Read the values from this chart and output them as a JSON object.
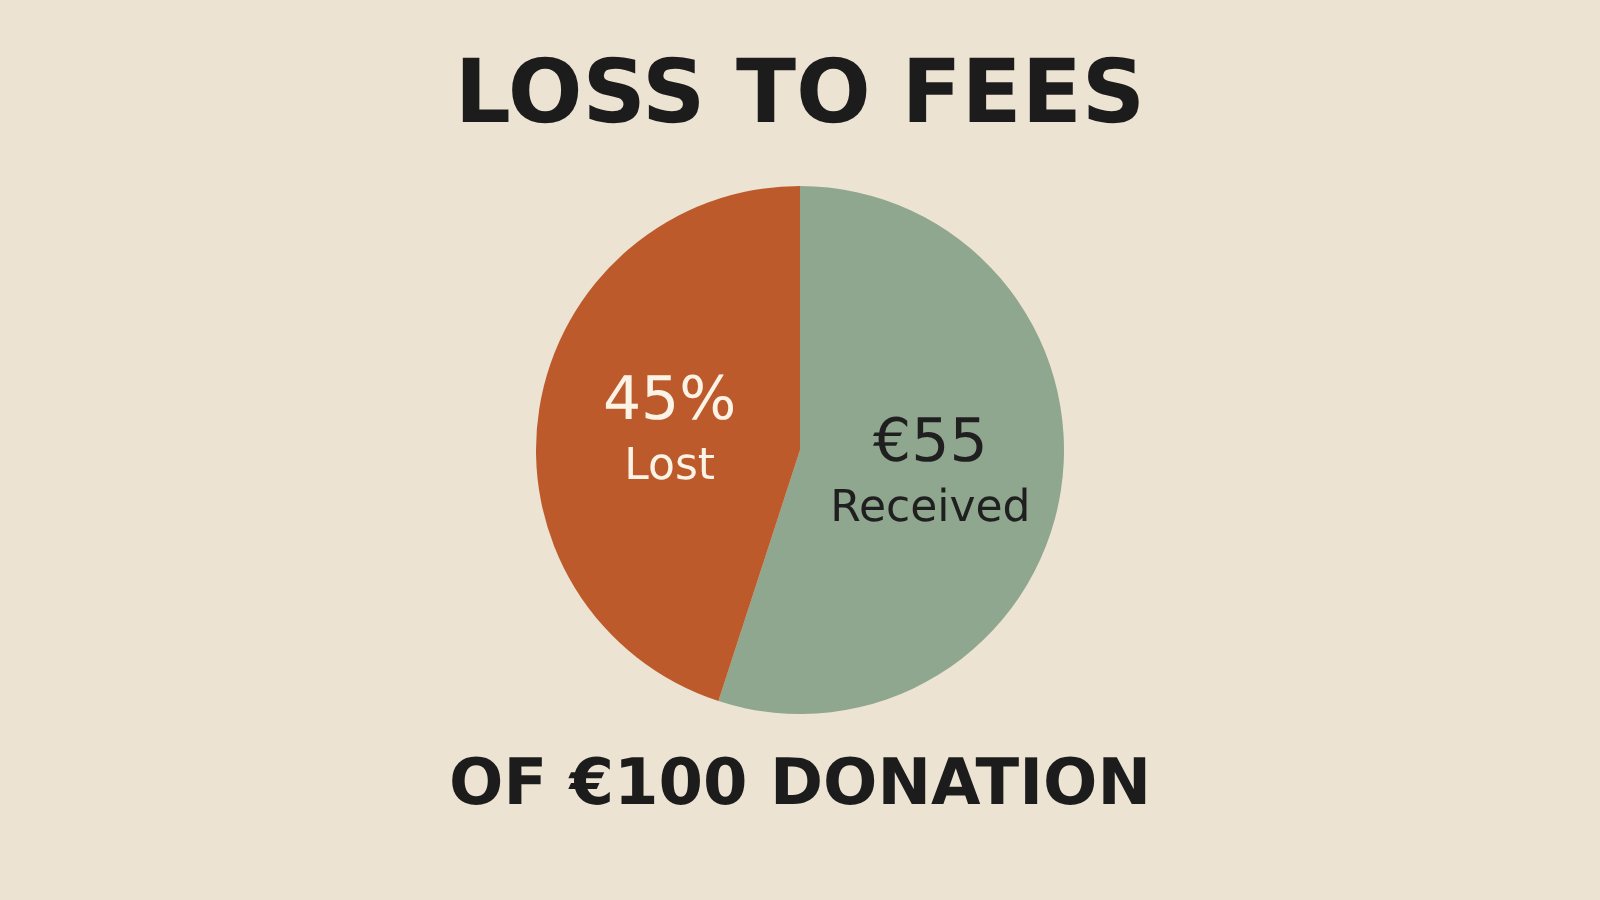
{
  "chart_data": {
    "type": "pie",
    "title": "LOSS TO FEES",
    "categories": [
      "Received",
      "Lost"
    ],
    "values": [
      55,
      45
    ],
    "colors": [
      "#8fa68f",
      "#bd5a2c"
    ],
    "value_labels": [
      "€55",
      "45%"
    ],
    "annotations": [
      "OF €100 DONATION"
    ]
  }
}
